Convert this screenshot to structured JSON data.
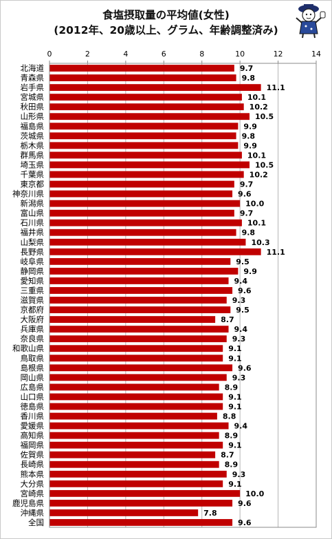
{
  "chart_data": {
    "type": "bar",
    "orientation": "horizontal",
    "title": "食塩摂取量の平均値(女性)",
    "subtitle": "(2012年、20歳以上、グラム、年齢調整済み)",
    "xlim": [
      0,
      14
    ],
    "xticks": [
      0,
      2,
      4,
      6,
      8,
      10,
      12,
      14
    ],
    "grid": true,
    "bar_color": "#c00000",
    "categories": [
      "北海道",
      "青森県",
      "岩手県",
      "宮城県",
      "秋田県",
      "山形県",
      "福島県",
      "茨城県",
      "栃木県",
      "群馬県",
      "埼玉県",
      "千葉県",
      "東京都",
      "神奈川県",
      "新潟県",
      "富山県",
      "石川県",
      "福井県",
      "山梨県",
      "長野県",
      "岐阜県",
      "静岡県",
      "愛知県",
      "三重県",
      "滋賀県",
      "京都府",
      "大阪府",
      "兵庫県",
      "奈良県",
      "和歌山県",
      "鳥取県",
      "島根県",
      "岡山県",
      "広島県",
      "山口県",
      "徳島県",
      "香川県",
      "愛媛県",
      "高知県",
      "福岡県",
      "佐賀県",
      "長崎県",
      "熊本県",
      "大分県",
      "宮崎県",
      "鹿児島県",
      "沖縄県",
      "全国"
    ],
    "values": [
      9.7,
      9.8,
      11.1,
      10.1,
      10.2,
      10.5,
      9.9,
      9.8,
      9.9,
      10.1,
      10.5,
      10.2,
      9.7,
      9.6,
      10.0,
      9.7,
      10.1,
      9.8,
      10.3,
      11.1,
      9.5,
      9.9,
      9.4,
      9.6,
      9.3,
      9.5,
      8.7,
      9.4,
      9.3,
      9.1,
      9.1,
      9.6,
      9.3,
      8.9,
      9.1,
      9.1,
      8.8,
      9.4,
      8.9,
      9.1,
      8.7,
      8.9,
      9.3,
      9.1,
      10.0,
      9.6,
      7.8,
      9.6
    ],
    "value_labels": [
      "9.7",
      "9.8",
      "11.1",
      "10.1",
      "10.2",
      "10.5",
      "9.9",
      "9.8",
      "9.9",
      "10.1",
      "10.5",
      "10.2",
      "9.7",
      "9.6",
      "10.0",
      "9.7",
      "10.1",
      "9.8",
      "10.3",
      "11.1",
      "9.5",
      "9.9",
      "9.4",
      "9.6",
      "9.3",
      "9.5",
      "8.7",
      "9.4",
      "9.3",
      "9.1",
      "9.1",
      "9.6",
      "9.3",
      "8.9",
      "9.1",
      "9.1",
      "8.8",
      "9.4",
      "8.9",
      "9.1",
      "8.7",
      "8.9",
      "9.3",
      "9.1",
      "10.0",
      "9.6",
      "7.8",
      "9.6"
    ]
  },
  "decoration": {
    "icon": "mascot-icon"
  }
}
